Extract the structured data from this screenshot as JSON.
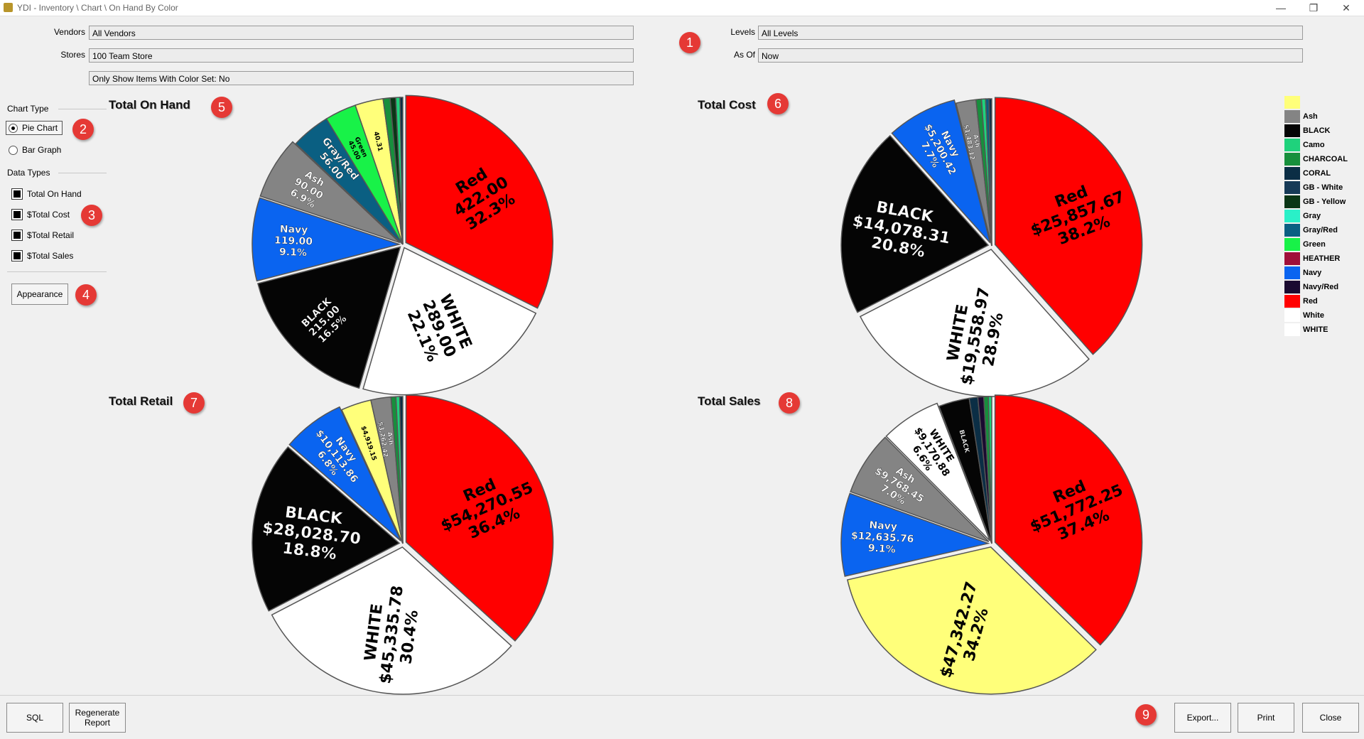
{
  "window": {
    "title": "YDI - Inventory \\ Chart \\ On Hand By Color",
    "min": "—",
    "restore": "❐",
    "close": "✕"
  },
  "filters": {
    "vendors_label": "Vendors",
    "vendors_value": "All Vendors",
    "stores_label": "Stores",
    "stores_value": "100 Team Store",
    "color_filter": "Only Show Items With Color Set: No",
    "levels_label": "Levels",
    "levels_value": "All Levels",
    "asof_label": "As Of",
    "asof_value": "Now"
  },
  "sidebar": {
    "chart_type_heading": "Chart Type",
    "pie_label": "Pie Chart",
    "bar_label": "Bar Graph",
    "data_types_heading": "Data Types",
    "data_types": [
      "Total On Hand",
      "$Total Cost",
      "$Total Retail",
      "$Total Sales"
    ],
    "appearance_label": "Appearance"
  },
  "badges": [
    "1",
    "2",
    "3",
    "4",
    "5",
    "6",
    "7",
    "8",
    "9"
  ],
  "buttons": {
    "sql": "SQL",
    "regenerate_1": "Regenerate",
    "regenerate_2": "Report",
    "export": "Export...",
    "print": "Print",
    "close": "Close"
  },
  "colors": {
    "Red": "#ff0000",
    "WHITE": "#ffffff",
    "BLACK": "#050505",
    "Navy": "#0a64f0",
    "Ash": "#848484",
    "Gray/Red": "#0a5f82",
    "Green": "#18f248",
    "Yellow": "#ffff7a",
    "CHARCOAL": "#178f3c",
    "Camo": "#1fd27c",
    "CORAL": "#0b2e45",
    "GB - White": "#163a57",
    "GB - Yellow": "#0a3616",
    "Gray": "#2af0c8",
    "HEATHER": "#a0103a",
    "Navy/Red": "#1a0a30",
    "White": "#ffffff"
  },
  "chart_data": [
    {
      "type": "pie",
      "title": "Total On Hand",
      "slices": [
        {
          "label": "Red",
          "value": 422.0,
          "value_text": "422.00",
          "percent": "32.3%",
          "color": "#ff0000"
        },
        {
          "label": "WHITE",
          "value": 289.0,
          "value_text": "289.00",
          "percent": "22.1%",
          "color": "#ffffff"
        },
        {
          "label": "BLACK",
          "value": 215.0,
          "value_text": "215.00",
          "percent": "16.5%",
          "color": "#050505"
        },
        {
          "label": "Navy",
          "value": 119.0,
          "value_text": "119.00",
          "percent": "9.1%",
          "color": "#0a64f0"
        },
        {
          "label": "Ash",
          "value": 90.0,
          "value_text": "90.00",
          "percent": "6.9%",
          "color": "#848484"
        },
        {
          "label": "Gray/Red",
          "value": 56.0,
          "value_text": "56.00",
          "percent": "",
          "color": "#0a5f82"
        },
        {
          "label": "Green",
          "value": 45.0,
          "value_text": "45.00",
          "percent": "",
          "color": "#18f248"
        },
        {
          "label": "",
          "value": 40.31,
          "value_text": "40.31",
          "percent": "",
          "color": "#ffff7a"
        },
        {
          "label": "",
          "value": 10,
          "value_text": "",
          "percent": "",
          "color": "#178f3c"
        },
        {
          "label": "",
          "value": 8,
          "value_text": "",
          "percent": "",
          "color": "#0a3616"
        },
        {
          "label": "",
          "value": 6,
          "value_text": "",
          "percent": "",
          "color": "#1fd27c"
        },
        {
          "label": "",
          "value": 4,
          "value_text": "",
          "percent": "",
          "color": "#0b2e45"
        }
      ]
    },
    {
      "type": "pie",
      "title": "Total Cost",
      "slices": [
        {
          "label": "Red",
          "value": 25857.67,
          "value_text": "$25,857.67",
          "percent": "38.2%",
          "color": "#ff0000"
        },
        {
          "label": "WHITE",
          "value": 19558.97,
          "value_text": "$19,558.97",
          "percent": "28.9%",
          "color": "#ffffff"
        },
        {
          "label": "BLACK",
          "value": 14078.31,
          "value_text": "$14,078.31",
          "percent": "20.8%",
          "color": "#050505"
        },
        {
          "label": "Navy",
          "value": 5200.42,
          "value_text": "$5,200.42",
          "percent": "7.7%",
          "color": "#0a64f0"
        },
        {
          "label": "Ash",
          "value": 1483.12,
          "value_text": "$1,483.12",
          "percent": "",
          "color": "#848484"
        },
        {
          "label": "",
          "value": 400,
          "value_text": "",
          "percent": "",
          "color": "#178f3c"
        },
        {
          "label": "",
          "value": 300,
          "value_text": "",
          "percent": "",
          "color": "#1fd27c"
        },
        {
          "label": "",
          "value": 250,
          "value_text": "",
          "percent": "",
          "color": "#0a5f82"
        },
        {
          "label": "",
          "value": 200,
          "value_text": "",
          "percent": "",
          "color": "#0b2e45"
        }
      ]
    },
    {
      "type": "pie",
      "title": "Total Retail",
      "slices": [
        {
          "label": "Red",
          "value": 54270.55,
          "value_text": "$54,270.55",
          "percent": "36.4%",
          "color": "#ff0000"
        },
        {
          "label": "WHITE",
          "value": 45335.78,
          "value_text": "$45,335.78",
          "percent": "30.4%",
          "color": "#ffffff"
        },
        {
          "label": "BLACK",
          "value": 28028.7,
          "value_text": "$28,028.70",
          "percent": "18.8%",
          "color": "#050505"
        },
        {
          "label": "Navy",
          "value": 10113.86,
          "value_text": "$10,113.86",
          "percent": "6.8%",
          "color": "#0a64f0"
        },
        {
          "label": "",
          "value": 4919.15,
          "value_text": "$4,919.15",
          "percent": "",
          "color": "#ffff7a"
        },
        {
          "label": "Ash",
          "value": 3262.42,
          "value_text": "$3,262.42",
          "percent": "",
          "color": "#848484"
        },
        {
          "label": "",
          "value": 800,
          "value_text": "",
          "percent": "",
          "color": "#178f3c"
        },
        {
          "label": "",
          "value": 600,
          "value_text": "",
          "percent": "",
          "color": "#1fd27c"
        },
        {
          "label": "",
          "value": 500,
          "value_text": "",
          "percent": "",
          "color": "#0b2e45"
        }
      ]
    },
    {
      "type": "pie",
      "title": "Total Sales",
      "slices": [
        {
          "label": "Red",
          "value": 51772.25,
          "value_text": "$51,772.25",
          "percent": "37.4%",
          "color": "#ff0000"
        },
        {
          "label": "",
          "value": 47342.27,
          "value_text": "$47,342.27",
          "percent": "34.2%",
          "color": "#ffff7a"
        },
        {
          "label": "Navy",
          "value": 12635.76,
          "value_text": "$12,635.76",
          "percent": "9.1%",
          "color": "#0a64f0"
        },
        {
          "label": "Ash",
          "value": 9768.45,
          "value_text": "$9,768.45",
          "percent": "7.0%",
          "color": "#848484"
        },
        {
          "label": "WHITE",
          "value": 9170.88,
          "value_text": "$9,170.88",
          "percent": "6.6%",
          "color": "#ffffff"
        },
        {
          "label": "BLACK",
          "value": 4700,
          "value_text": "",
          "percent": "",
          "color": "#050505"
        },
        {
          "label": "",
          "value": 1300,
          "value_text": "",
          "percent": "",
          "color": "#0b2e45"
        },
        {
          "label": "",
          "value": 900,
          "value_text": "",
          "percent": "",
          "color": "#1a0a30"
        },
        {
          "label": "",
          "value": 700,
          "value_text": "",
          "percent": "",
          "color": "#178f3c"
        },
        {
          "label": "",
          "value": 500,
          "value_text": "",
          "percent": "",
          "color": "#1fd27c"
        }
      ]
    }
  ],
  "legend": [
    {
      "label": "",
      "color": "#ffff7a"
    },
    {
      "label": "Ash",
      "color": "#848484"
    },
    {
      "label": "BLACK",
      "color": "#050505"
    },
    {
      "label": "Camo",
      "color": "#1fd27c"
    },
    {
      "label": "CHARCOAL",
      "color": "#178f3c"
    },
    {
      "label": "CORAL",
      "color": "#0b2e45"
    },
    {
      "label": "GB - White",
      "color": "#163a57"
    },
    {
      "label": "GB - Yellow",
      "color": "#0a3616"
    },
    {
      "label": "Gray",
      "color": "#2af0c8"
    },
    {
      "label": "Gray/Red",
      "color": "#0a5f82"
    },
    {
      "label": "Green",
      "color": "#18f248"
    },
    {
      "label": "HEATHER",
      "color": "#a0103a"
    },
    {
      "label": "Navy",
      "color": "#0a64f0"
    },
    {
      "label": "Navy/Red",
      "color": "#1a0a30"
    },
    {
      "label": "Red",
      "color": "#ff0000"
    },
    {
      "label": "White",
      "color": "#ffffff"
    },
    {
      "label": "WHITE",
      "color": "#ffffff"
    }
  ]
}
